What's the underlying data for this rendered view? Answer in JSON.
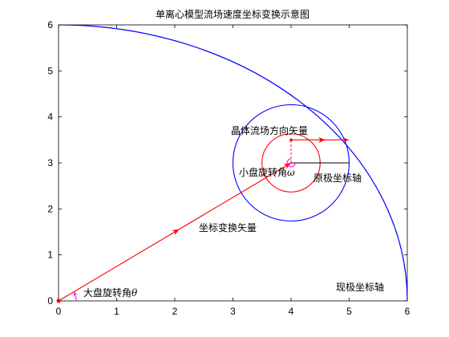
{
  "title": "单离心模型流场速度坐标变换示意图",
  "axes": {
    "xlim": [
      0,
      6
    ],
    "ylim": [
      0,
      6
    ],
    "x_ticks": [
      "0",
      "1",
      "2",
      "3",
      "4",
      "5",
      "6"
    ],
    "y_ticks": [
      "0",
      "1",
      "2",
      "3",
      "4",
      "5",
      "6"
    ],
    "grid": false
  },
  "labels": {
    "crystal_flow_vector": "晶体流场方向矢量",
    "small_disk_angle_prefix": "小盘旋转角",
    "small_disk_angle_symbol": "ω",
    "original_polar_axis": "原极坐标轴",
    "coord_transform_vector": "坐标变换矢量",
    "big_disk_angle_prefix": "大盘旋转角",
    "big_disk_angle_symbol": "θ",
    "current_polar_axis": "现极坐标轴"
  },
  "colors": {
    "blue": "#0000ff",
    "red": "#ff0000",
    "magenta": "#ff00ff",
    "black": "#000000"
  },
  "chart_data": {
    "type": "diagram",
    "big_arc": {
      "center": [
        0,
        0
      ],
      "radius": 6,
      "start_deg": 0,
      "end_deg": 90
    },
    "small_disk_center": [
      4,
      3
    ],
    "blue_circle_radius": 1,
    "red_circle_radius": 0.5,
    "transform_vector": {
      "from": [
        0,
        0
      ],
      "to": [
        4,
        3
      ]
    },
    "crystal_point": [
      4,
      3.5
    ],
    "flow_vector": {
      "from": [
        4,
        3.5
      ],
      "to": [
        4.99,
        3.5
      ]
    },
    "original_axis_line": {
      "from": [
        4,
        3
      ],
      "to": [
        5,
        3
      ]
    }
  }
}
